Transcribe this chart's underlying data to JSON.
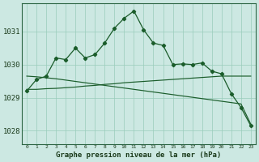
{
  "background_color": "#cce8e2",
  "grid_color": "#99ccbb",
  "line_color": "#1a5c2a",
  "x_labels": [
    "0",
    "1",
    "2",
    "3",
    "4",
    "5",
    "6",
    "7",
    "8",
    "9",
    "10",
    "11",
    "12",
    "13",
    "14",
    "15",
    "16",
    "17",
    "18",
    "19",
    "20",
    "21",
    "22",
    "23"
  ],
  "xlabel": "Graphe pression niveau de la mer (hPa)",
  "ylim": [
    1027.6,
    1031.85
  ],
  "yticks": [
    1028,
    1029,
    1030,
    1031
  ],
  "series_main": [
    1029.2,
    1029.55,
    1029.65,
    1030.2,
    1030.15,
    1030.5,
    1030.2,
    1030.3,
    1030.65,
    1031.1,
    1031.4,
    1031.62,
    1031.05,
    1030.65,
    1030.58,
    1030.0,
    1030.02,
    1030.0,
    1030.05,
    1029.8,
    1029.72,
    1029.12,
    1028.7,
    1028.15
  ],
  "series_down": [
    1029.65,
    1029.63,
    1029.6,
    1029.57,
    1029.53,
    1029.49,
    1029.45,
    1029.41,
    1029.37,
    1029.33,
    1029.29,
    1029.25,
    1029.21,
    1029.17,
    1029.13,
    1029.09,
    1029.05,
    1029.01,
    1028.97,
    1028.93,
    1028.89,
    1028.85,
    1028.81,
    1028.2
  ],
  "series_flat": [
    1029.25,
    1029.25,
    1029.27,
    1029.28,
    1029.3,
    1029.32,
    1029.35,
    1029.37,
    1029.4,
    1029.42,
    1029.45,
    1029.47,
    1029.49,
    1029.51,
    1029.53,
    1029.55,
    1029.57,
    1029.59,
    1029.61,
    1029.63,
    1029.65,
    1029.65,
    1029.65,
    1029.65
  ]
}
